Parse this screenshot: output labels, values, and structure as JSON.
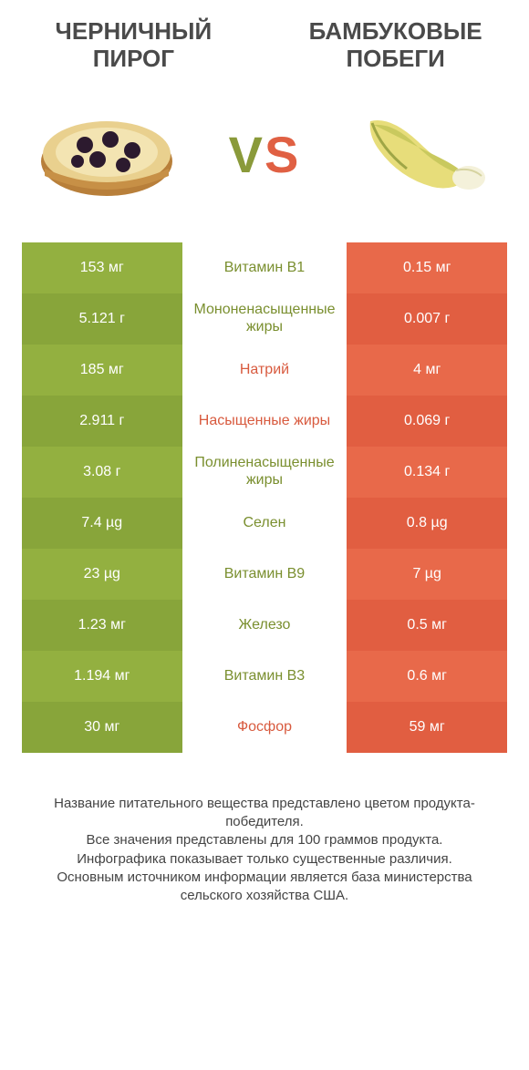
{
  "header": {
    "left_title": "ЧЕРНИЧНЫЙ ПИРОГ",
    "right_title": "БАМБУКОВЫЕ ПОБЕГИ"
  },
  "vs": {
    "v": "V",
    "s": "S"
  },
  "colors": {
    "green1": "#93b040",
    "green2": "#88a53a",
    "orange1": "#e8694a",
    "orange2": "#e15e41",
    "mid_green": "#7a8f2f",
    "mid_orange": "#d85a3e",
    "text": "#4a4a4a",
    "bg": "#ffffff"
  },
  "rows": [
    {
      "label": "Витамин B1",
      "left": "153 мг",
      "right": "0.15 мг",
      "winner": "left"
    },
    {
      "label": "Мононенасыщенные жиры",
      "left": "5.121 г",
      "right": "0.007 г",
      "winner": "left"
    },
    {
      "label": "Натрий",
      "left": "185 мг",
      "right": "4 мг",
      "winner": "right"
    },
    {
      "label": "Насыщенные жиры",
      "left": "2.911 г",
      "right": "0.069 г",
      "winner": "right"
    },
    {
      "label": "Полиненасыщенные жиры",
      "left": "3.08 г",
      "right": "0.134 г",
      "winner": "left"
    },
    {
      "label": "Селен",
      "left": "7.4 µg",
      "right": "0.8 µg",
      "winner": "left"
    },
    {
      "label": "Витамин B9",
      "left": "23 µg",
      "right": "7 µg",
      "winner": "left"
    },
    {
      "label": "Железо",
      "left": "1.23 мг",
      "right": "0.5 мг",
      "winner": "left"
    },
    {
      "label": "Витамин B3",
      "left": "1.194 мг",
      "right": "0.6 мг",
      "winner": "left"
    },
    {
      "label": "Фосфор",
      "left": "30 мг",
      "right": "59 мг",
      "winner": "right"
    }
  ],
  "footer": {
    "line1": "Название питательного вещества представлено цветом продукта-победителя.",
    "line2": "Все значения представлены для 100 граммов продукта.",
    "line3": "Инфографика показывает только существенные различия.",
    "line4": "Основным источником информации является база министерства сельского хозяйства США."
  }
}
